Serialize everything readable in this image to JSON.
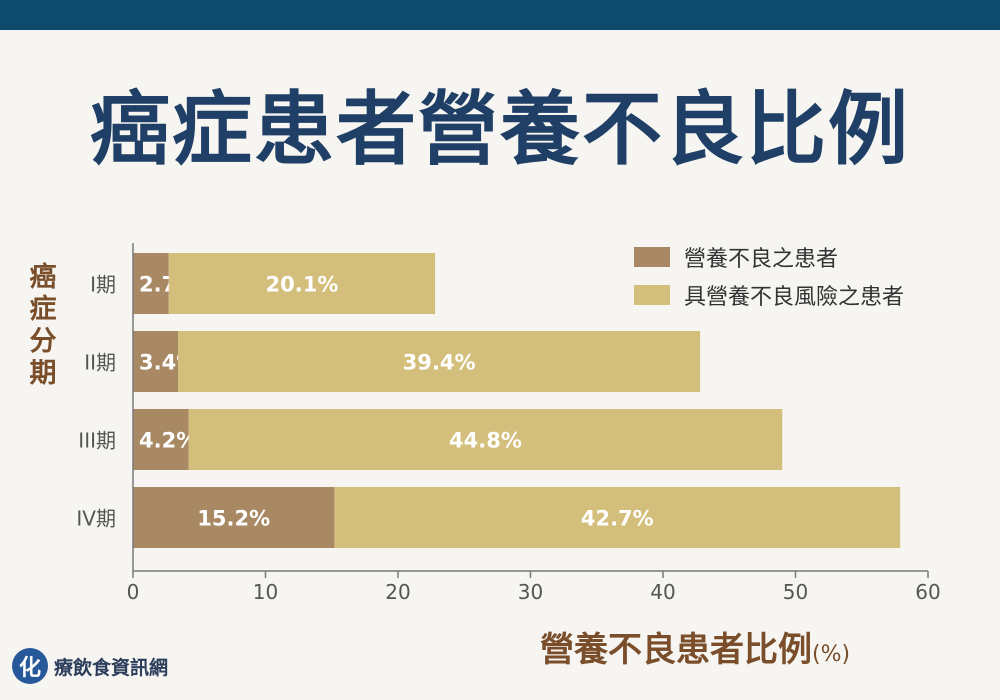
{
  "title": "癌症患者營養不良比例",
  "brand": {
    "mark": "化",
    "name": "療飲食資訊網"
  },
  "colors": {
    "malnourished": "#a88964",
    "at_risk": "#d4be7c",
    "axis": "#7a7a7a"
  },
  "chart_data": {
    "type": "bar",
    "orientation": "horizontal",
    "stacked": true,
    "title": "癌症患者營養不良比例",
    "ylabel": "癌症分期",
    "xlabel": "營養不良患者比例",
    "xunit": "(%)",
    "categories": [
      "I期",
      "II期",
      "III期",
      "IV期"
    ],
    "series": [
      {
        "name": "營養不良之患者",
        "values": [
          2.7,
          3.4,
          4.2,
          15.2
        ],
        "labels": [
          "2.7%",
          "3.4%",
          "4.2%",
          "15.2%"
        ]
      },
      {
        "name": "具營養不良風險之患者",
        "values": [
          20.1,
          39.4,
          44.8,
          42.7
        ],
        "labels": [
          "20.1%",
          "39.4%",
          "44.8%",
          "42.7%"
        ]
      }
    ],
    "xlim": [
      0,
      60
    ],
    "xticks": [
      "0",
      "10",
      "20",
      "30",
      "40",
      "50",
      "60"
    ],
    "legend": "top-right",
    "grid": false
  }
}
